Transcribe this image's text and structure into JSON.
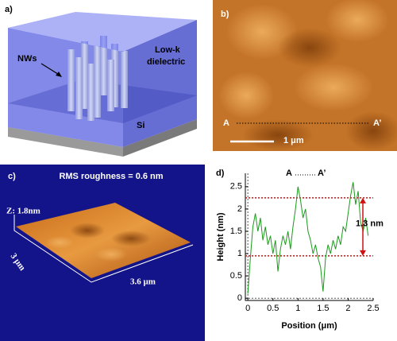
{
  "panels": {
    "a": {
      "label": "a)",
      "nws": "NWs",
      "dielectric": [
        "Low-k",
        "dielectric"
      ],
      "substrate": "Si"
    },
    "b": {
      "label": "b)",
      "start": "A",
      "end": "A’",
      "scale": "1 μm"
    },
    "c": {
      "label": "c)",
      "roughness": "RMS roughness = 0.6 nm",
      "z": "Z: 1.8nm",
      "width": "3 μm",
      "length": "3.6 μm"
    }
  },
  "chart_data": {
    "type": "line",
    "panel_label": "d)",
    "start": "A",
    "end": "A’",
    "xlabel": "Position (μm)",
    "ylabel": "Height (nm)",
    "annotation": "1.3 nm",
    "xlim": [
      -0.05,
      2.5
    ],
    "ylim": [
      -0.05,
      2.8
    ],
    "xticks": [
      0,
      0.5,
      1,
      1.5,
      2,
      2.5
    ],
    "yticks": [
      0,
      0.5,
      1,
      1.5,
      2,
      2.5
    ],
    "reference_lines": [
      2.25,
      0.95
    ],
    "series": [
      {
        "color": "#1a9a1a",
        "x": [
          0,
          0.05,
          0.1,
          0.15,
          0.2,
          0.25,
          0.3,
          0.35,
          0.4,
          0.45,
          0.5,
          0.55,
          0.6,
          0.65,
          0.7,
          0.75,
          0.8,
          0.85,
          0.9,
          0.95,
          1,
          1.05,
          1.1,
          1.15,
          1.2,
          1.25,
          1.3,
          1.35,
          1.4,
          1.45,
          1.5,
          1.55,
          1.6,
          1.65,
          1.7,
          1.75,
          1.8,
          1.85,
          1.9,
          1.95,
          2,
          2.05,
          2.1,
          2.15,
          2.2,
          2.25,
          2.3,
          2.35,
          2.4
        ],
        "values": [
          0.1,
          0.9,
          1.6,
          1.9,
          1.5,
          1.8,
          1.3,
          1.6,
          1.2,
          1.4,
          1.0,
          1.3,
          0.6,
          1.1,
          1.4,
          1.2,
          1.5,
          1.1,
          1.6,
          2.0,
          2.5,
          2.2,
          1.8,
          2.0,
          1.5,
          1.3,
          1.0,
          1.2,
          0.9,
          0.7,
          0.15,
          0.9,
          1.2,
          1.0,
          1.3,
          1.1,
          1.4,
          1.2,
          1.6,
          1.5,
          1.9,
          2.3,
          2.6,
          2.1,
          2.4,
          1.7,
          1.5,
          1.8,
          1.4
        ]
      }
    ]
  }
}
